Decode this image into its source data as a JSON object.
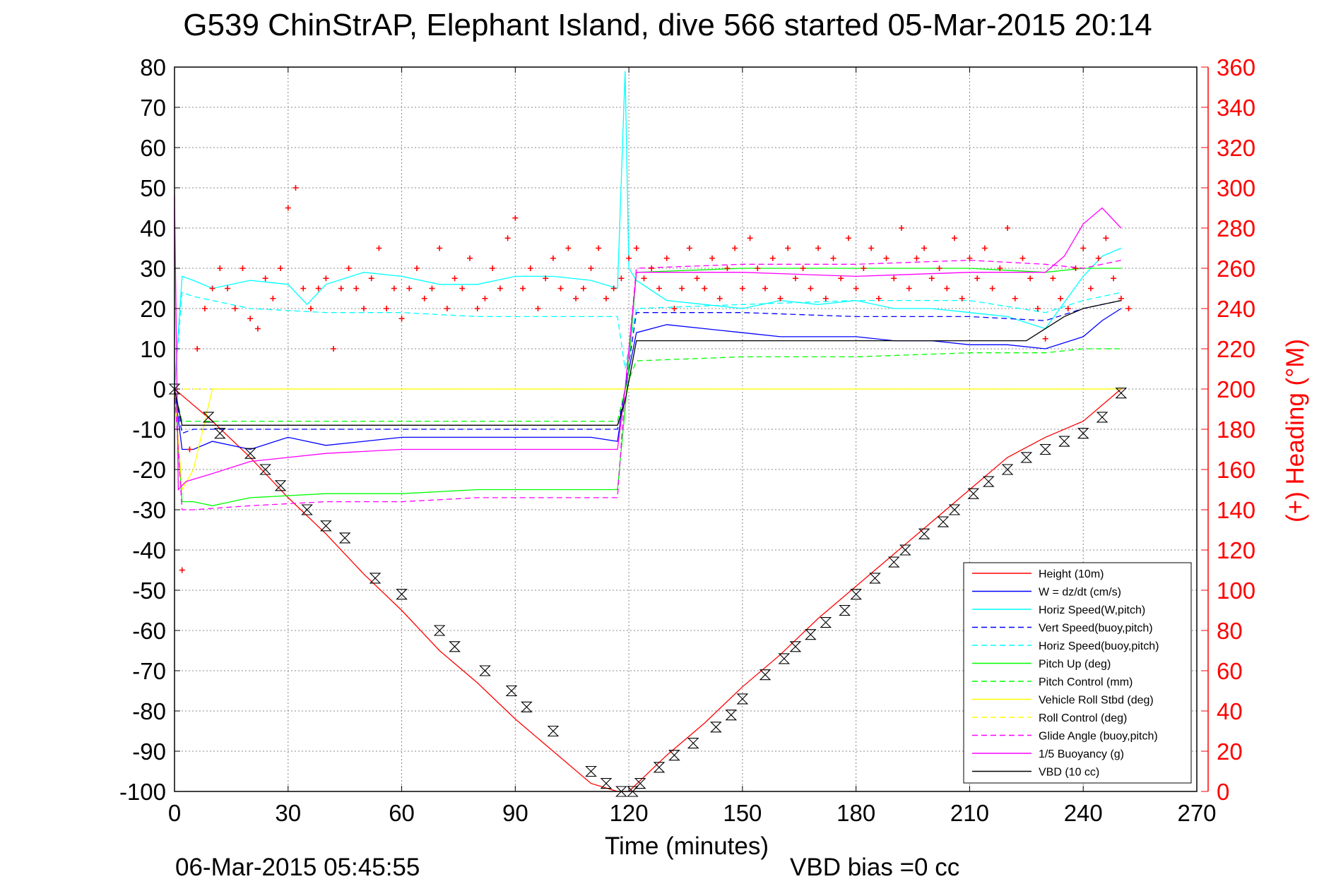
{
  "chart_data": {
    "type": "line",
    "title": "G539 ChinStrAP, Elephant Island, dive 566 started 05-Mar-2015 20:14",
    "xlabel": "Time (minutes)",
    "ylabel_right": "(+) Heading (°M)",
    "footer_left": "06-Mar-2015 05:45:55",
    "footer_right": "VBD bias =0 cc",
    "xlim": [
      0,
      270
    ],
    "ylim": [
      -100,
      80
    ],
    "ylim_right": [
      0,
      360
    ],
    "x_ticks": [
      "0",
      "30",
      "60",
      "90",
      "120",
      "150",
      "180",
      "210",
      "240",
      "270"
    ],
    "y_ticks": [
      "80",
      "70",
      "60",
      "50",
      "40",
      "30",
      "20",
      "10",
      "0",
      "-10",
      "-20",
      "-30",
      "-40",
      "-50",
      "-60",
      "-70",
      "-80",
      "-90",
      "-100"
    ],
    "y_ticks_right": [
      "360",
      "340",
      "320",
      "300",
      "280",
      "260",
      "240",
      "220",
      "200",
      "180",
      "160",
      "140",
      "120",
      "100",
      "80",
      "60",
      "40",
      "20",
      "0"
    ],
    "grid": true,
    "legend_placement": "bottom-right",
    "series": [
      {
        "name": "Height (10m)",
        "color": "#ff0000",
        "style": "solid",
        "x": [
          0,
          10,
          20,
          30,
          40,
          50,
          60,
          70,
          80,
          90,
          100,
          110,
          117,
          120,
          130,
          140,
          150,
          160,
          170,
          180,
          190,
          200,
          210,
          220,
          230,
          240,
          250
        ],
        "y": [
          0,
          -8,
          -17,
          -27,
          -36,
          -46,
          -55,
          -65,
          -73,
          -82,
          -90,
          -98,
          -100,
          -100,
          -91,
          -83,
          -74,
          -66,
          -57,
          -49,
          -41,
          -33,
          -25,
          -17,
          -12,
          -8,
          0
        ]
      },
      {
        "name": "W = dz/dt (cm/s)",
        "color": "#0000ff",
        "style": "solid",
        "x": [
          0,
          2,
          5,
          10,
          20,
          30,
          40,
          50,
          60,
          70,
          80,
          90,
          100,
          110,
          117,
          119,
          122,
          130,
          140,
          150,
          160,
          170,
          180,
          190,
          200,
          210,
          220,
          230,
          240,
          245,
          250
        ],
        "y": [
          0,
          -15,
          -15,
          -13,
          -15,
          -12,
          -14,
          -13,
          -12,
          -12,
          -12,
          -12,
          -12,
          -12,
          -13,
          0,
          14,
          16,
          15,
          14,
          13,
          13,
          13,
          12,
          12,
          11,
          11,
          10,
          13,
          17,
          20
        ]
      },
      {
        "name": "Horiz Speed(W,pitch)",
        "color": "#00ffff",
        "style": "solid",
        "x": [
          0,
          2,
          5,
          10,
          20,
          30,
          35,
          40,
          50,
          60,
          70,
          80,
          90,
          100,
          110,
          117,
          119,
          120,
          122,
          130,
          140,
          150,
          160,
          170,
          180,
          190,
          200,
          210,
          220,
          230,
          240,
          245,
          250
        ],
        "y": [
          0,
          28,
          27,
          25,
          27,
          26,
          21,
          26,
          29,
          28,
          26,
          26,
          28,
          28,
          27,
          25,
          79,
          30,
          27,
          22,
          21,
          20,
          22,
          21,
          22,
          20,
          20,
          19,
          18,
          15,
          28,
          33,
          35
        ]
      },
      {
        "name": "Vert Speed(buoy,pitch)",
        "color": "#0000ff",
        "style": "dashed",
        "x": [
          0,
          2,
          5,
          20,
          40,
          60,
          80,
          100,
          117,
          119,
          122,
          150,
          180,
          210,
          230,
          240,
          250
        ],
        "y": [
          0,
          -11,
          -10,
          -10,
          -10,
          -10,
          -10,
          -10,
          -10,
          0,
          19,
          19,
          18,
          18,
          17,
          20,
          22
        ]
      },
      {
        "name": "Horiz Speed(buoy,pitch)",
        "color": "#00ffff",
        "style": "dashed",
        "x": [
          0,
          2,
          5,
          20,
          40,
          60,
          80,
          100,
          117,
          119,
          122,
          150,
          180,
          210,
          230,
          240,
          250
        ],
        "y": [
          0,
          24,
          23,
          20,
          19,
          19,
          18,
          18,
          18,
          5,
          20,
          21,
          22,
          22,
          19,
          22,
          24
        ]
      },
      {
        "name": "Pitch Up (deg)",
        "color": "#00ff00",
        "style": "solid",
        "x": [
          0,
          2,
          5,
          10,
          20,
          40,
          60,
          80,
          100,
          117,
          119,
          122,
          150,
          180,
          210,
          230,
          240,
          250
        ],
        "y": [
          0,
          -28,
          -28,
          -29,
          -27,
          -26,
          -26,
          -25,
          -25,
          -25,
          -5,
          29,
          30,
          30,
          30,
          29,
          30,
          30
        ]
      },
      {
        "name": "Pitch Control (mm)",
        "color": "#00ff00",
        "style": "dashed",
        "x": [
          0,
          2,
          20,
          60,
          100,
          117,
          119,
          122,
          150,
          180,
          210,
          230,
          240,
          250
        ],
        "y": [
          0,
          -8,
          -8,
          -8,
          -8,
          -8,
          0,
          7,
          8,
          8,
          9,
          9,
          10,
          10
        ]
      },
      {
        "name": "Vehicle Roll Stbd (deg)",
        "color": "#ffff00",
        "style": "solid",
        "x": [
          0,
          2,
          5,
          10,
          20,
          40,
          60,
          80,
          100,
          117,
          119,
          122,
          150,
          180,
          210,
          230,
          240,
          250
        ],
        "y": [
          0,
          -25,
          -20,
          0,
          0,
          0,
          0,
          0,
          0,
          0,
          0,
          0,
          0,
          0,
          0,
          0,
          0,
          0
        ]
      },
      {
        "name": "Roll Control (deg)",
        "color": "#ffff00",
        "style": "dashed",
        "x": [
          0,
          2,
          20,
          60,
          100,
          117,
          119,
          122,
          150,
          180,
          210,
          230,
          240,
          250
        ],
        "y": [
          0,
          0,
          0,
          0,
          0,
          0,
          0,
          0,
          0,
          0,
          0,
          0,
          0,
          0
        ]
      },
      {
        "name": "Glide Angle (buoy,pitch)",
        "color": "#ff00ff",
        "style": "dashed",
        "x": [
          0,
          2,
          5,
          20,
          40,
          60,
          80,
          100,
          117,
          119,
          122,
          150,
          180,
          210,
          230,
          240,
          250
        ],
        "y": [
          0,
          -30,
          -30,
          -29,
          -28,
          -28,
          -27,
          -27,
          -27,
          0,
          30,
          31,
          31,
          32,
          31,
          30,
          32
        ]
      },
      {
        "name": "1/5 Buoyancy (g)",
        "color": "#ff00ff",
        "style": "solid",
        "x": [
          0,
          1,
          3,
          10,
          20,
          40,
          60,
          80,
          100,
          117,
          119,
          122,
          150,
          180,
          210,
          230,
          235,
          240,
          245,
          250
        ],
        "y": [
          48,
          -25,
          -23,
          -21,
          -18,
          -16,
          -15,
          -15,
          -15,
          -15,
          0,
          29,
          29,
          28,
          29,
          29,
          33,
          41,
          45,
          40
        ]
      },
      {
        "name": "VBD (10 cc)",
        "color": "#000000",
        "style": "solid",
        "x": [
          0,
          2,
          5,
          20,
          40,
          60,
          80,
          100,
          117,
          119,
          122,
          150,
          180,
          210,
          225,
          235,
          240,
          245,
          250
        ],
        "y": [
          0,
          -9,
          -9,
          -9,
          -9,
          -9,
          -9,
          -9,
          -9,
          -3,
          12,
          12,
          12,
          12,
          12,
          18,
          20,
          21,
          22
        ]
      }
    ],
    "heading_series": {
      "name": "Heading",
      "color": "#ff0000",
      "marker": "+",
      "axis": "right",
      "x": [
        2,
        4,
        6,
        8,
        10,
        12,
        14,
        16,
        18,
        20,
        22,
        24,
        26,
        28,
        30,
        32,
        34,
        36,
        38,
        40,
        42,
        44,
        46,
        48,
        50,
        52,
        54,
        56,
        58,
        60,
        62,
        64,
        66,
        68,
        70,
        72,
        74,
        76,
        78,
        80,
        82,
        84,
        86,
        88,
        90,
        92,
        94,
        96,
        98,
        100,
        102,
        104,
        106,
        108,
        110,
        112,
        114,
        116,
        118,
        120,
        122,
        124,
        126,
        128,
        130,
        132,
        134,
        136,
        138,
        140,
        142,
        144,
        146,
        148,
        150,
        152,
        154,
        156,
        158,
        160,
        162,
        164,
        166,
        168,
        170,
        172,
        174,
        176,
        178,
        180,
        182,
        184,
        186,
        188,
        190,
        192,
        194,
        196,
        198,
        200,
        202,
        204,
        206,
        208,
        210,
        212,
        214,
        216,
        218,
        220,
        222,
        224,
        226,
        228,
        230,
        232,
        234,
        236,
        238,
        240,
        242,
        244,
        246,
        248,
        250,
        252
      ],
      "y": [
        110,
        170,
        220,
        240,
        250,
        260,
        250,
        240,
        260,
        235,
        230,
        255,
        245,
        260,
        290,
        300,
        250,
        240,
        250,
        255,
        220,
        250,
        260,
        250,
        240,
        255,
        270,
        240,
        250,
        235,
        250,
        260,
        245,
        250,
        270,
        240,
        255,
        250,
        265,
        240,
        245,
        260,
        250,
        275,
        285,
        250,
        260,
        240,
        255,
        265,
        250,
        270,
        245,
        250,
        260,
        270,
        245,
        250,
        255,
        265,
        270,
        255,
        260,
        250,
        265,
        240,
        250,
        270,
        255,
        250,
        265,
        245,
        260,
        270,
        250,
        275,
        260,
        250,
        265,
        245,
        270,
        255,
        260,
        250,
        270,
        245,
        265,
        255,
        275,
        250,
        260,
        270,
        245,
        265,
        255,
        280,
        250,
        265,
        270,
        255,
        260,
        250,
        275,
        245,
        265,
        255,
        270,
        250,
        260,
        280,
        245,
        265,
        255,
        240,
        225,
        255,
        245,
        240,
        260,
        270,
        250,
        265,
        275,
        255,
        245,
        240
      ]
    },
    "markers_series": {
      "name": "VBD markers",
      "color": "#000000",
      "marker": "hourglass",
      "x": [
        0,
        9,
        12,
        20,
        24,
        28,
        35,
        40,
        45,
        53,
        60,
        70,
        74,
        82,
        89,
        93,
        100,
        110,
        114,
        118,
        121,
        123,
        128,
        132,
        137,
        143,
        147,
        150,
        156,
        161,
        164,
        168,
        172,
        177,
        180,
        185,
        190,
        193,
        198,
        203,
        206,
        211,
        215,
        220,
        225,
        230,
        235,
        240,
        245,
        250
      ],
      "y": [
        0,
        -7,
        -11,
        -16,
        -20,
        -24,
        -30,
        -34,
        -37,
        -47,
        -51,
        -60,
        -64,
        -70,
        -75,
        -79,
        -85,
        -95,
        -98,
        -100,
        -100,
        -98,
        -94,
        -91,
        -88,
        -84,
        -81,
        -77,
        -71,
        -67,
        -64,
        -61,
        -58,
        -55,
        -51,
        -47,
        -43,
        -40,
        -36,
        -33,
        -30,
        -26,
        -23,
        -20,
        -17,
        -15,
        -13,
        -11,
        -7,
        -1
      ]
    }
  }
}
